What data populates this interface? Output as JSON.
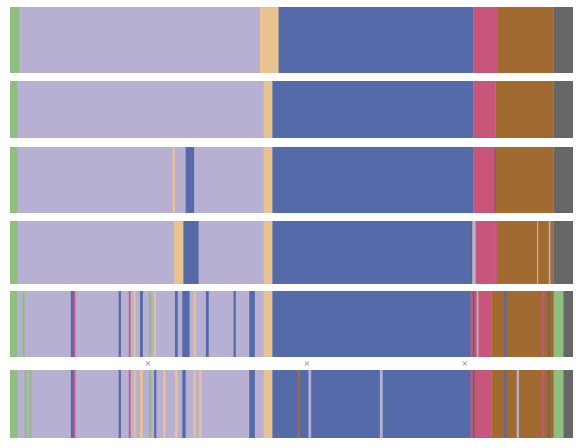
{
  "chart_data": {
    "type": "bar",
    "title": "",
    "xlabel": "",
    "ylabel": "",
    "grid": false,
    "legend": "none",
    "markers": [
      "×",
      "×",
      "×"
    ],
    "colors": {
      "green": "#8fbf7f",
      "lavender": "#b8b0d2",
      "peach": "#e8c38f",
      "blue": "#556aa8",
      "pink": "#c8557a",
      "brown": "#a06a30",
      "gray": "#666666"
    },
    "rows": [
      {
        "segments": [
          [
            "green",
            0,
            1.7
          ],
          [
            "lavender",
            1.7,
            44.4
          ],
          [
            "peach",
            44.4,
            47.7
          ],
          [
            "blue",
            47.7,
            82.3
          ],
          [
            "pink",
            82.3,
            86.6
          ],
          [
            "brown",
            86.6,
            96.6
          ],
          [
            "gray",
            96.6,
            100
          ]
        ]
      },
      {
        "segments": [
          [
            "green",
            0,
            1.4
          ],
          [
            "lavender",
            1.4,
            45.1
          ],
          [
            "peach",
            45.1,
            46.6
          ],
          [
            "blue",
            46.6,
            82.3
          ],
          [
            "pink",
            82.3,
            86.3
          ],
          [
            "brown",
            86.3,
            96.6
          ],
          [
            "gray",
            96.6,
            100
          ]
        ]
      },
      {
        "segments": [
          [
            "green",
            0,
            1.4
          ],
          [
            "lavender",
            1.4,
            45.1
          ],
          [
            "peach",
            45.1,
            46.6
          ],
          [
            "blue",
            46.6,
            82.3
          ],
          [
            "pink",
            82.3,
            86.3
          ],
          [
            "brown",
            86.3,
            96.6
          ],
          [
            "gray",
            96.6,
            100
          ]
        ],
        "overlays": [
          [
            "peach",
            28.9,
            29.3
          ],
          [
            "blue",
            31.2,
            32.7
          ],
          [
            "gray",
            86.1,
            86.3
          ]
        ]
      },
      {
        "segments": [
          [
            "green",
            0,
            1.4
          ],
          [
            "lavender",
            1.4,
            45.1
          ],
          [
            "peach",
            45.1,
            46.6
          ],
          [
            "blue",
            46.6,
            82.7
          ],
          [
            "pink",
            82.7,
            86.3
          ],
          [
            "brown",
            86.3,
            96.6
          ],
          [
            "gray",
            96.6,
            100
          ]
        ],
        "overlays": [
          [
            "peach",
            29.1,
            30.8
          ],
          [
            "blue",
            30.8,
            33.5
          ],
          [
            "gray",
            81.8,
            82.1
          ],
          [
            "lavender",
            82.1,
            82.7
          ],
          [
            "pink",
            86.3,
            86.6
          ],
          [
            "lavender",
            93.6,
            93.8
          ],
          [
            "lavender",
            95.7,
            96.0
          ]
        ]
      },
      {
        "segments": [
          [
            "green",
            0,
            1.4
          ],
          [
            "lavender",
            1.4,
            45.1
          ],
          [
            "peach",
            45.1,
            46.6
          ],
          [
            "blue",
            46.6,
            81.8
          ],
          [
            "pink",
            81.8,
            85.5
          ],
          [
            "brown",
            85.5,
            96.6
          ],
          [
            "green",
            96.6,
            98.3
          ],
          [
            "gray",
            98.3,
            100
          ]
        ],
        "overlays": [
          [
            "green",
            2.2,
            2.6
          ],
          [
            "blue",
            10.8,
            11.3
          ],
          [
            "pink",
            11.3,
            11.6
          ],
          [
            "blue",
            19.3,
            19.7
          ],
          [
            "pink",
            21.1,
            21.4
          ],
          [
            "peach",
            22.0,
            22.3
          ],
          [
            "blue",
            23.1,
            23.6
          ],
          [
            "green",
            24.7,
            25.1
          ],
          [
            "peach",
            25.6,
            25.9
          ],
          [
            "blue",
            29.3,
            29.8
          ],
          [
            "blue",
            30.6,
            31.9
          ],
          [
            "peach",
            32.6,
            33.0
          ],
          [
            "blue",
            34.8,
            35.3
          ],
          [
            "blue",
            39.7,
            40.1
          ],
          [
            "blue",
            42.5,
            43.5
          ],
          [
            "gray",
            82.2,
            82.5
          ],
          [
            "lavender",
            82.9,
            83.2
          ],
          [
            "blue",
            87.8,
            88.2
          ],
          [
            "pink",
            94.4,
            94.9
          ],
          [
            "gray",
            95.6,
            95.9
          ]
        ]
      },
      {
        "segments": [
          [
            "green",
            0,
            1.4
          ],
          [
            "lavender",
            1.4,
            45.1
          ],
          [
            "peach",
            45.1,
            46.6
          ],
          [
            "blue",
            46.6,
            81.8
          ],
          [
            "pink",
            81.8,
            85.5
          ],
          [
            "brown",
            85.5,
            96.6
          ],
          [
            "green",
            96.6,
            98.3
          ],
          [
            "gray",
            98.3,
            100
          ]
        ],
        "overlays": [
          [
            "green",
            2.6,
            3.0
          ],
          [
            "green",
            3.4,
            3.8
          ],
          [
            "blue",
            10.8,
            11.3
          ],
          [
            "pink",
            11.3,
            11.6
          ],
          [
            "blue",
            19.3,
            19.7
          ],
          [
            "pink",
            21.1,
            21.4
          ],
          [
            "peach",
            22.0,
            22.3
          ],
          [
            "peach",
            23.1,
            23.6
          ],
          [
            "green",
            24.7,
            25.1
          ],
          [
            "blue",
            25.6,
            26.0
          ],
          [
            "peach",
            27.2,
            27.6
          ],
          [
            "peach",
            29.3,
            29.8
          ],
          [
            "blue",
            30.6,
            31.2
          ],
          [
            "peach",
            32.6,
            33.0
          ],
          [
            "peach",
            33.6,
            34.0
          ],
          [
            "blue",
            42.5,
            43.5
          ],
          [
            "brown",
            51.0,
            51.5
          ],
          [
            "lavender",
            53.0,
            53.5
          ],
          [
            "lavender",
            65.7,
            66.2
          ],
          [
            "gray",
            82.2,
            82.5
          ],
          [
            "blue",
            87.8,
            88.2
          ],
          [
            "lavender",
            90.0,
            90.4
          ],
          [
            "pink",
            94.4,
            94.9
          ],
          [
            "gray",
            95.6,
            95.9
          ]
        ]
      }
    ]
  }
}
